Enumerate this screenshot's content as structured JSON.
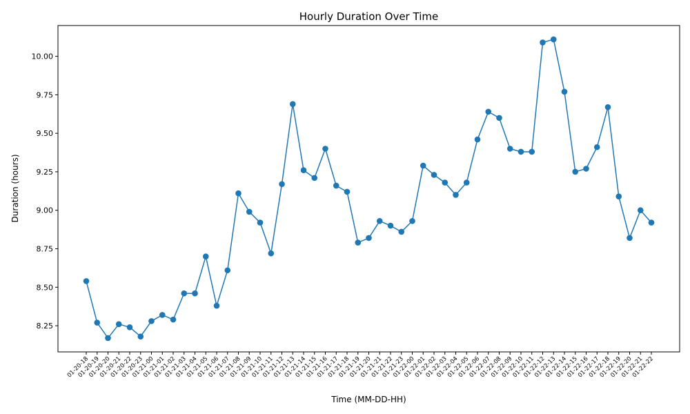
{
  "chart_data": {
    "type": "line",
    "title": "Hourly Duration Over Time",
    "xlabel": "Time (MM-DD-HH)",
    "ylabel": "Duration (hours)",
    "ylim": [
      8.08,
      10.2
    ],
    "yticks": [
      "8.25",
      "8.50",
      "8.75",
      "9.00",
      "9.25",
      "9.50",
      "9.75",
      "10.00"
    ],
    "grid": false,
    "color": "#1f77b4",
    "categories": [
      "01-20-18",
      "01-20-19",
      "01-20-20",
      "01-20-21",
      "01-20-22",
      "01-20-23",
      "01-21-00",
      "01-21-01",
      "01-21-02",
      "01-21-03",
      "01-21-04",
      "01-21-05",
      "01-21-06",
      "01-21-07",
      "01-21-08",
      "01-21-09",
      "01-21-10",
      "01-21-11",
      "01-21-12",
      "01-21-13",
      "01-21-14",
      "01-21-15",
      "01-21-16",
      "01-21-17",
      "01-21-18",
      "01-21-19",
      "01-21-20",
      "01-21-21",
      "01-21-22",
      "01-21-23",
      "01-22-00",
      "01-22-01",
      "01-22-02",
      "01-22-03",
      "01-22-04",
      "01-22-05",
      "01-22-06",
      "01-22-07",
      "01-22-08",
      "01-22-09",
      "01-22-10",
      "01-22-11",
      "01-22-12",
      "01-22-13",
      "01-22-14",
      "01-22-15",
      "01-22-16",
      "01-22-17",
      "01-22-18",
      "01-22-19",
      "01-22-20",
      "01-22-21",
      "01-22-22"
    ],
    "values": [
      8.54,
      8.27,
      8.17,
      8.26,
      8.24,
      8.18,
      8.28,
      8.32,
      8.29,
      8.46,
      8.46,
      8.7,
      8.38,
      8.61,
      9.11,
      8.99,
      8.92,
      8.72,
      9.17,
      9.69,
      9.26,
      9.21,
      9.4,
      9.16,
      9.12,
      8.79,
      8.82,
      8.93,
      8.9,
      8.86,
      8.93,
      9.29,
      9.23,
      9.18,
      9.1,
      9.18,
      9.46,
      9.64,
      9.6,
      9.4,
      9.38,
      9.38,
      10.09,
      10.11,
      9.77,
      9.25,
      9.27,
      9.41,
      9.67,
      9.09,
      8.82,
      9.0,
      8.92
    ]
  }
}
